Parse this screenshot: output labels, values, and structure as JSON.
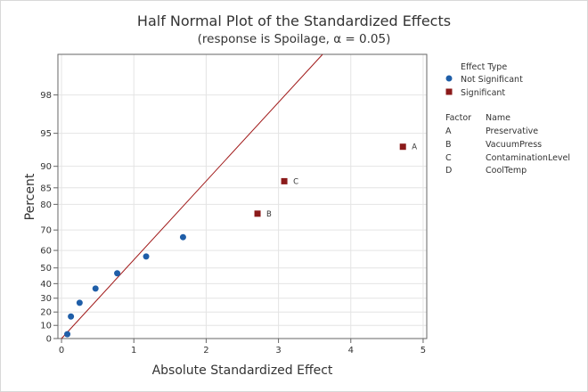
{
  "chart_data": {
    "type": "scatter",
    "title": "Half Normal Plot of the Standardized Effects",
    "subtitle": "(response is Spoilage, α = 0.05)",
    "xlabel": "Absolute Standardized Effect",
    "ylabel": "Percent",
    "xlim": [
      -0.05,
      5.05
    ],
    "x_ticks": [
      0,
      1,
      2,
      3,
      4,
      5
    ],
    "y_ticks": [
      0,
      10,
      20,
      30,
      40,
      50,
      60,
      70,
      80,
      85,
      90,
      95,
      98
    ],
    "y_scale": "half-normal probability",
    "grid": true,
    "legend_placement": "right",
    "legend": {
      "title": "Effect Type",
      "entries": [
        {
          "name": "Not Significant",
          "marker": "circle",
          "color": "#1f5ea8"
        },
        {
          "name": "Significant",
          "marker": "square",
          "color": "#8b1a1a"
        }
      ]
    },
    "factor_table": {
      "header_factor": "Factor",
      "header_name": "Name",
      "rows": [
        {
          "factor": "A",
          "name": "Preservative"
        },
        {
          "factor": "B",
          "name": "VacuumPress"
        },
        {
          "factor": "C",
          "name": "ContaminationLevel"
        },
        {
          "factor": "D",
          "name": "CoolTemp"
        }
      ]
    },
    "reference_line": {
      "color": "#a01818",
      "slope_effect_per_z": 1.33
    },
    "series": [
      {
        "name": "Not Significant",
        "color": "#1f5ea8",
        "points": [
          {
            "x": 0.08,
            "y": 3.3
          },
          {
            "x": 0.13,
            "y": 16.7
          },
          {
            "x": 0.25,
            "y": 26.7
          },
          {
            "x": 0.47,
            "y": 36.7
          },
          {
            "x": 0.77,
            "y": 46.7
          },
          {
            "x": 1.17,
            "y": 56.7
          },
          {
            "x": 1.68,
            "y": 66.7
          }
        ]
      },
      {
        "name": "Significant",
        "color": "#8b1a1a",
        "points": [
          {
            "x": 2.71,
            "y": 76.7,
            "label": "B"
          },
          {
            "x": 3.08,
            "y": 86.7,
            "label": "C"
          },
          {
            "x": 4.72,
            "y": 93.3,
            "label": "A"
          }
        ]
      }
    ]
  }
}
